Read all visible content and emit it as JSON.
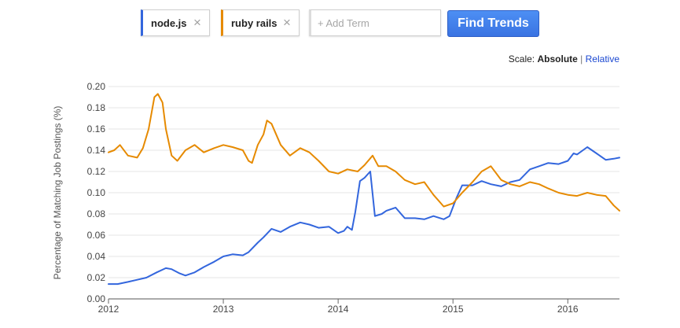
{
  "search": {
    "terms": [
      {
        "label": "node.js",
        "color": "#3366dd",
        "close_glyph": "×"
      },
      {
        "label": "ruby rails",
        "color": "#e68a00",
        "close_glyph": "×"
      }
    ],
    "add_placeholder": "+ Add Term",
    "find_button": "Find Trends"
  },
  "scale": {
    "label": "Scale:",
    "active": "Absolute",
    "separator": "|",
    "other": "Relative"
  },
  "chart_data": {
    "type": "line",
    "ylabel": "Percentage of Matching Job Postings (%)",
    "xlabel": "",
    "xlim": [
      2012.0,
      2016.45
    ],
    "ylim": [
      0,
      0.2
    ],
    "yticks": [
      0.0,
      0.02,
      0.04,
      0.06,
      0.08,
      0.1,
      0.12,
      0.14,
      0.16,
      0.18,
      0.2
    ],
    "ytick_labels": [
      "0.00",
      "0.02",
      "0.04",
      "0.06",
      "0.08",
      "0.10",
      "0.12",
      "0.14",
      "0.16",
      "0.18",
      "0.20"
    ],
    "xticks": [
      2012,
      2013,
      2014,
      2015,
      2016
    ],
    "xtick_labels": [
      "2012",
      "2013",
      "2014",
      "2015",
      "2016"
    ],
    "grid": true,
    "series": [
      {
        "name": "node.js",
        "color": "#3366dd",
        "x": [
          2012.0,
          2012.08,
          2012.17,
          2012.25,
          2012.33,
          2012.42,
          2012.5,
          2012.55,
          2012.62,
          2012.67,
          2012.75,
          2012.83,
          2012.92,
          2013.0,
          2013.08,
          2013.17,
          2013.22,
          2013.3,
          2013.35,
          2013.42,
          2013.5,
          2013.58,
          2013.67,
          2013.75,
          2013.83,
          2013.92,
          2014.0,
          2014.05,
          2014.08,
          2014.12,
          2014.15,
          2014.19,
          2014.23,
          2014.28,
          2014.32,
          2014.38,
          2014.42,
          2014.5,
          2014.58,
          2014.67,
          2014.75,
          2014.83,
          2014.92,
          2014.97,
          2015.03,
          2015.08,
          2015.17,
          2015.25,
          2015.33,
          2015.42,
          2015.5,
          2015.58,
          2015.67,
          2015.75,
          2015.83,
          2015.92,
          2016.0,
          2016.05,
          2016.08,
          2016.17,
          2016.25,
          2016.33,
          2016.4,
          2016.45
        ],
        "y": [
          0.014,
          0.014,
          0.016,
          0.018,
          0.02,
          0.025,
          0.029,
          0.028,
          0.024,
          0.022,
          0.025,
          0.03,
          0.035,
          0.04,
          0.042,
          0.041,
          0.044,
          0.053,
          0.058,
          0.066,
          0.063,
          0.068,
          0.072,
          0.07,
          0.067,
          0.068,
          0.062,
          0.064,
          0.068,
          0.065,
          0.082,
          0.111,
          0.114,
          0.12,
          0.078,
          0.08,
          0.083,
          0.086,
          0.076,
          0.076,
          0.075,
          0.078,
          0.075,
          0.078,
          0.095,
          0.107,
          0.107,
          0.111,
          0.108,
          0.106,
          0.11,
          0.112,
          0.122,
          0.125,
          0.128,
          0.127,
          0.13,
          0.137,
          0.136,
          0.143,
          0.137,
          0.131,
          0.132,
          0.133
        ]
      },
      {
        "name": "ruby rails",
        "color": "#e68a00",
        "x": [
          2012.0,
          2012.05,
          2012.1,
          2012.17,
          2012.25,
          2012.3,
          2012.35,
          2012.4,
          2012.43,
          2012.47,
          2012.5,
          2012.55,
          2012.6,
          2012.67,
          2012.75,
          2012.83,
          2012.92,
          2013.0,
          2013.08,
          2013.17,
          2013.22,
          2013.25,
          2013.3,
          2013.35,
          2013.38,
          2013.42,
          2013.5,
          2013.58,
          2013.67,
          2013.75,
          2013.83,
          2013.92,
          2014.0,
          2014.08,
          2014.17,
          2014.23,
          2014.3,
          2014.35,
          2014.42,
          2014.5,
          2014.58,
          2014.67,
          2014.75,
          2014.83,
          2014.92,
          2015.0,
          2015.08,
          2015.17,
          2015.25,
          2015.33,
          2015.42,
          2015.5,
          2015.58,
          2015.67,
          2015.75,
          2015.83,
          2015.92,
          2016.0,
          2016.08,
          2016.17,
          2016.25,
          2016.33,
          2016.4,
          2016.45
        ],
        "y": [
          0.138,
          0.14,
          0.145,
          0.135,
          0.133,
          0.142,
          0.16,
          0.19,
          0.193,
          0.185,
          0.16,
          0.135,
          0.13,
          0.14,
          0.145,
          0.138,
          0.142,
          0.145,
          0.143,
          0.14,
          0.13,
          0.128,
          0.145,
          0.155,
          0.168,
          0.165,
          0.145,
          0.135,
          0.142,
          0.138,
          0.13,
          0.12,
          0.118,
          0.122,
          0.12,
          0.126,
          0.135,
          0.125,
          0.125,
          0.12,
          0.112,
          0.108,
          0.11,
          0.098,
          0.087,
          0.09,
          0.1,
          0.11,
          0.12,
          0.125,
          0.112,
          0.108,
          0.106,
          0.11,
          0.108,
          0.104,
          0.1,
          0.098,
          0.097,
          0.1,
          0.098,
          0.097,
          0.088,
          0.083
        ]
      }
    ]
  }
}
